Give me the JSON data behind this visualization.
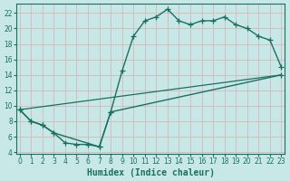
{
  "xlabel": "Humidex (Indice chaleur)",
  "bg_color": "#c8e8e8",
  "grid_color": "#b0d8d8",
  "line_color": "#1a7060",
  "xlim": [
    -0.3,
    23.3
  ],
  "ylim": [
    3.8,
    23.2
  ],
  "xticks": [
    0,
    1,
    2,
    3,
    4,
    5,
    6,
    7,
    8,
    9,
    10,
    11,
    12,
    13,
    14,
    15,
    16,
    17,
    18,
    19,
    20,
    21,
    22,
    23
  ],
  "yticks": [
    4,
    6,
    8,
    10,
    12,
    14,
    16,
    18,
    20,
    22
  ],
  "line1_x": [
    0,
    1,
    2,
    3,
    4,
    5,
    6,
    7,
    8,
    9,
    10,
    11,
    12,
    13,
    14,
    15,
    16,
    17,
    18,
    19,
    20,
    21,
    22,
    23
  ],
  "line1_y": [
    9.5,
    8.0,
    7.5,
    6.5,
    5.2,
    5.0,
    5.0,
    4.7,
    9.2,
    14.5,
    19.0,
    21.0,
    21.5,
    22.5,
    21.0,
    20.5,
    21.0,
    21.0,
    21.5,
    20.5,
    20.0,
    19.0,
    18.5,
    15.0
  ],
  "line2_x": [
    0,
    23
  ],
  "line2_y": [
    9.5,
    14.0
  ],
  "line3_x": [
    0,
    1,
    2,
    3,
    7,
    8,
    23
  ],
  "line3_y": [
    9.5,
    8.0,
    7.5,
    6.5,
    4.7,
    9.2,
    14.0
  ]
}
